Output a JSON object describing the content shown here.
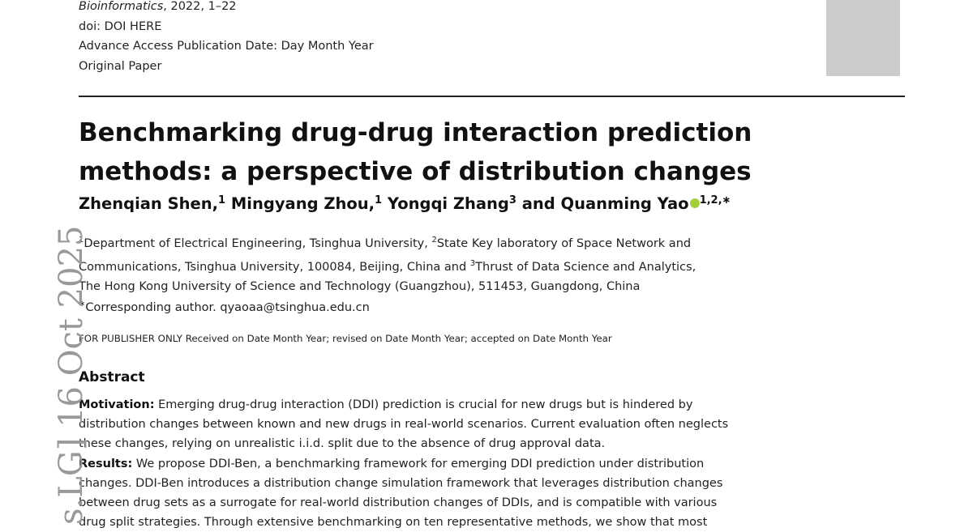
{
  "header": {
    "journal": "Bioinformatics",
    "journal_rest": ", 2022, 1–22",
    "doi": "doi: DOI HERE",
    "access": "Advance Access Publication Date: Day Month Year",
    "type": "Original Paper"
  },
  "title_lines": [
    "Benchmarking drug-drug interaction prediction",
    "methods: a perspective of distribution changes"
  ],
  "authors": {
    "a1": "Zhenqian Shen,",
    "a1_sup": "1",
    "a2": "Mingyang Zhou,",
    "a2_sup": "1",
    "a3": "Yongqi Zhang",
    "a3_sup": "3",
    "and": "and",
    "a4": "Quanming Yao",
    "a4_sup": "1,2,∗"
  },
  "affiliations": {
    "sup1": "1",
    "line1a": "Department of Electrical Engineering, Tsinghua University,",
    "sup2": "2",
    "line1b": "State Key laboratory of Space Network and",
    "line2a": "Communications, Tsinghua University,  100084, Beijing, China and",
    "sup3": "3",
    "line2b": "Thrust of Data Science and Analytics,",
    "line3": "The Hong Kong University of Science and Technology (Guangzhou),  511453, Guangdong, China"
  },
  "corresponding": {
    "sup": "∗",
    "text": "Corresponding author. qyaoaa@tsinghua.edu.cn"
  },
  "publisher_note": "FOR PUBLISHER ONLY Received on Date Month Year; revised on Date Month Year; accepted on Date Month Year",
  "abstract": {
    "heading": "Abstract",
    "motivation_label": "Motivation:",
    "motivation_lines": [
      " Emerging drug-drug interaction (DDI) prediction is crucial for new drugs but is hindered by",
      "distribution changes between known and new drugs in real-world scenarios. Current evaluation often neglects",
      "these changes, relying on unrealistic i.i.d. split due to the absence of drug approval data."
    ],
    "results_label": "Results:",
    "results_lines": [
      "  We propose DDI-Ben, a benchmarking framework for emerging DDI prediction under distribution",
      "changes. DDI-Ben introduces a distribution change simulation framework that leverages distribution changes",
      "between drug sets as a surrogate for real-world distribution changes of DDIs, and is compatible with various",
      "drug split strategies. Through extensive benchmarking on ten representative methods, we show that most"
    ]
  },
  "side_stamp": "s.LG]  16 Oct 2025"
}
